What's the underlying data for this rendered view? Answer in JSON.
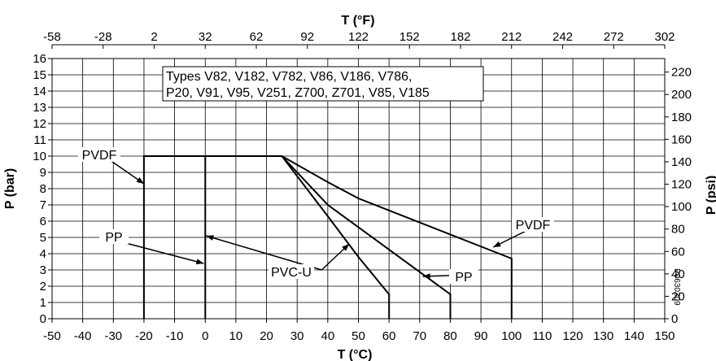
{
  "chart_data": {
    "type": "line",
    "title": "",
    "xlabel": "T (°C)",
    "x2label": "T (°F)",
    "ylabel": "P (bar)",
    "y2label": "P (psi)",
    "xlim": [
      -50,
      150
    ],
    "ylim": [
      0,
      16
    ],
    "y2lim": [
      0,
      232
    ],
    "x_ticks": [
      -50,
      -40,
      -30,
      -20,
      -10,
      0,
      10,
      20,
      30,
      40,
      50,
      60,
      70,
      80,
      90,
      100,
      110,
      120,
      130,
      140,
      150
    ],
    "y_ticks": [
      0,
      1,
      2,
      3,
      4,
      5,
      6,
      7,
      8,
      9,
      10,
      11,
      12,
      13,
      14,
      15,
      16
    ],
    "x2_ticks": [
      -58,
      -28,
      2,
      32,
      62,
      92,
      122,
      152,
      182,
      212,
      242,
      272,
      302
    ],
    "y2_ticks": [
      0,
      20,
      40,
      60,
      80,
      100,
      120,
      140,
      160,
      180,
      200,
      220
    ],
    "grid": true,
    "series": [
      {
        "name": "PVDF",
        "x": [
          -20,
          -20,
          25,
          40,
          50,
          100,
          100
        ],
        "y": [
          0,
          10,
          10,
          8.4,
          7.4,
          3.7,
          0
        ]
      },
      {
        "name": "PP",
        "x": [
          0,
          0,
          25,
          40,
          80,
          80
        ],
        "y": [
          0,
          10,
          10,
          7,
          1.5,
          0
        ]
      },
      {
        "x": [
          25,
          40,
          50,
          60,
          60
        ],
        "y": [
          10,
          6.3,
          3.8,
          1.5,
          0
        ]
      }
    ],
    "annotations": [
      {
        "text": "PVDF",
        "x": -33,
        "y": 10,
        "arrow_to": [
          -20,
          8.3
        ]
      },
      {
        "text": "PP",
        "x": -33,
        "y": 5,
        "arrow_to": [
          -0.5,
          3.4
        ]
      },
      {
        "text": "PVC-U",
        "x": 38,
        "y": 3,
        "arrow_to": [
          0.3,
          5.1
        ]
      },
      {
        "text": "PVC-U",
        "x": 38,
        "y": 3,
        "arrow_to": [
          47,
          4.6
        ]
      },
      {
        "text": "PP",
        "x": 86,
        "y": 2.7,
        "arrow_to": [
          71,
          2.6
        ]
      },
      {
        "text": "PVDF",
        "x": 109,
        "y": 5.8,
        "arrow_to": [
          94,
          4.4
        ]
      }
    ],
    "note_lines": [
      "Types V82, V182, V782, V86, V186, V786,",
      "P20, V91, V95, V251, Z700, Z701, V85, V185"
    ],
    "figure_code": "P0630309"
  },
  "colors": {
    "line": "#000000",
    "grid": "#000000",
    "background": "#ffffff"
  }
}
